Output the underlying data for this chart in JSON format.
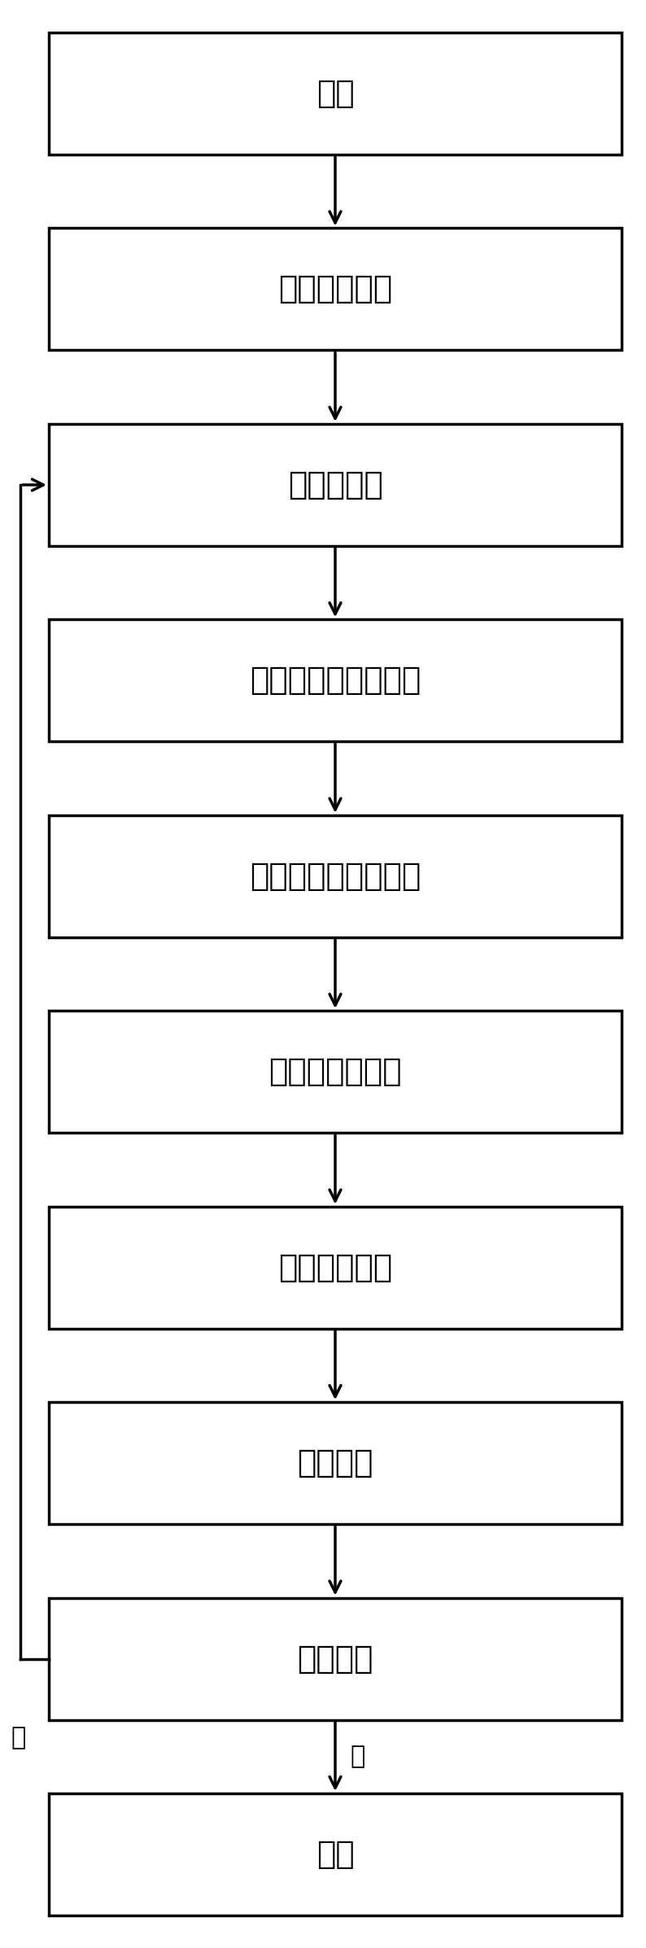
{
  "boxes": [
    {
      "label": "开始"
    },
    {
      "label": "学习样本读入"
    },
    {
      "label": "数据正规化"
    },
    {
      "label": "神经网络权值初始化"
    },
    {
      "label": "计算隐层节点输出值"
    },
    {
      "label": "计算输出层误差"
    },
    {
      "label": "计算隐层误差"
    },
    {
      "label": "调整权值"
    },
    {
      "label": "允许误差"
    },
    {
      "label": "结束"
    }
  ],
  "no_label": "否",
  "yes_label": "是",
  "bg_color": "#ffffff",
  "box_color": "#ffffff",
  "border_color": "#000000",
  "line_color": "#000000"
}
